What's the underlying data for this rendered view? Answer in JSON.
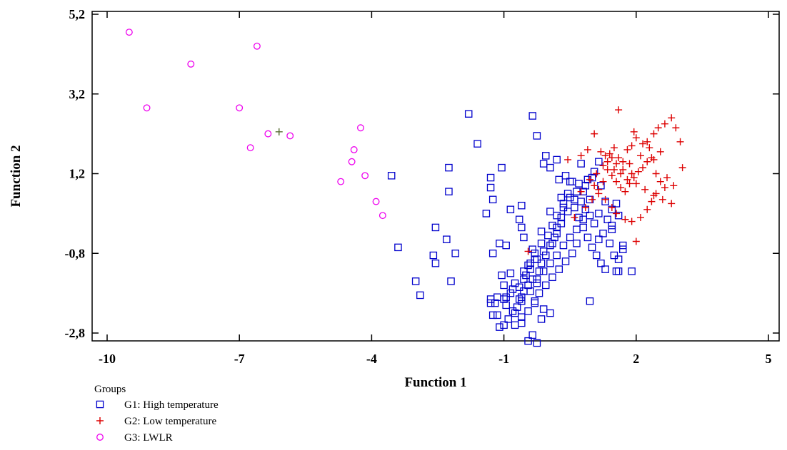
{
  "chart_data": {
    "type": "scatter",
    "xlabel": "Function 1",
    "ylabel": "Function 2",
    "xlim": [
      -10.5,
      5
    ],
    "ylim": [
      -3.0,
      5.3
    ],
    "x_ticks": [
      -10,
      -7,
      -4,
      -1,
      2,
      5
    ],
    "x_tick_labels": [
      "-10",
      "-7",
      "-4",
      "-1",
      "2",
      "5"
    ],
    "y_ticks": [
      -2.8,
      -0.8,
      1.2,
      3.2,
      5.2
    ],
    "y_tick_labels": [
      "-2,8",
      "-0,8",
      "1,2",
      "3,2",
      "5,2"
    ],
    "grid": false,
    "legend_title": "Groups",
    "legend_position": "bottom-left",
    "series": [
      {
        "name": "G1: High temperature",
        "marker": "square",
        "color": "#0000cc",
        "points": [
          [
            -3.55,
            1.15
          ],
          [
            -3.4,
            -0.65
          ],
          [
            -3.0,
            -1.5
          ],
          [
            -2.9,
            -1.85
          ],
          [
            -2.55,
            -0.15
          ],
          [
            -2.6,
            -0.85
          ],
          [
            -2.55,
            -1.05
          ],
          [
            -2.3,
            -0.45
          ],
          [
            -2.2,
            -1.5
          ],
          [
            -2.25,
            0.75
          ],
          [
            -2.25,
            1.35
          ],
          [
            -2.1,
            -0.8
          ],
          [
            -1.8,
            2.7
          ],
          [
            -1.6,
            1.95
          ],
          [
            -1.3,
            1.1
          ],
          [
            -1.3,
            0.85
          ],
          [
            -1.25,
            0.55
          ],
          [
            -1.05,
            1.35
          ],
          [
            -1.1,
            -0.55
          ],
          [
            -1.25,
            -0.8
          ],
          [
            -1.3,
            -1.95
          ],
          [
            -1.25,
            -2.35
          ],
          [
            -1.05,
            -1.35
          ],
          [
            -1.0,
            -1.6
          ],
          [
            -0.95,
            -2.1
          ],
          [
            -0.85,
            0.3
          ],
          [
            -0.6,
            0.4
          ],
          [
            -0.65,
            0.05
          ],
          [
            -0.6,
            -0.15
          ],
          [
            -0.85,
            -1.3
          ],
          [
            -0.8,
            -1.7
          ],
          [
            -0.75,
            -2.3
          ],
          [
            -0.6,
            -1.9
          ],
          [
            -0.5,
            -1.35
          ],
          [
            -0.45,
            -1.1
          ],
          [
            -0.35,
            -0.7
          ],
          [
            -0.3,
            -0.95
          ],
          [
            -0.25,
            -1.55
          ],
          [
            -0.3,
            -2.0
          ],
          [
            -0.15,
            -2.45
          ],
          [
            -0.1,
            -2.2
          ],
          [
            0.05,
            -2.3
          ],
          [
            -0.6,
            -2.55
          ],
          [
            -0.35,
            -2.85
          ],
          [
            -0.45,
            -3.0
          ],
          [
            -0.25,
            -3.05
          ],
          [
            -0.75,
            -2.6
          ],
          [
            -0.35,
            2.65
          ],
          [
            -0.25,
            2.15
          ],
          [
            -0.05,
            1.65
          ],
          [
            0.2,
            1.55
          ],
          [
            -0.1,
            1.45
          ],
          [
            0.05,
            1.35
          ],
          [
            0.25,
            1.05
          ],
          [
            0.4,
            1.15
          ],
          [
            0.55,
            1.0
          ],
          [
            0.65,
            0.75
          ],
          [
            0.75,
            0.5
          ],
          [
            0.85,
            0.3
          ],
          [
            0.95,
            0.15
          ],
          [
            1.05,
            -0.05
          ],
          [
            1.15,
            0.2
          ],
          [
            1.25,
            -0.3
          ],
          [
            1.4,
            -0.55
          ],
          [
            1.5,
            -0.85
          ],
          [
            1.6,
            -0.95
          ],
          [
            1.7,
            -0.6
          ],
          [
            1.55,
            -1.25
          ],
          [
            1.45,
            -0.2
          ],
          [
            1.3,
            0.5
          ],
          [
            1.2,
            0.9
          ],
          [
            1.05,
            1.25
          ],
          [
            0.9,
            1.05
          ],
          [
            0.7,
            0.95
          ],
          [
            0.5,
            0.6
          ],
          [
            0.35,
            0.35
          ],
          [
            0.3,
            0.1
          ],
          [
            0.2,
            -0.15
          ],
          [
            0.15,
            -0.4
          ],
          [
            0.05,
            -0.6
          ],
          [
            -0.05,
            -0.85
          ],
          [
            -0.15,
            -1.05
          ],
          [
            -0.2,
            -1.25
          ],
          [
            -0.35,
            -1.45
          ],
          [
            -0.45,
            -1.6
          ],
          [
            -0.55,
            -1.75
          ],
          [
            -0.65,
            -1.95
          ],
          [
            -0.7,
            -2.15
          ],
          [
            -0.8,
            -2.25
          ],
          [
            -0.9,
            -2.45
          ],
          [
            -1.0,
            -2.6
          ],
          [
            -1.1,
            -2.65
          ],
          [
            -1.15,
            -2.35
          ],
          [
            -1.2,
            -2.05
          ],
          [
            -0.95,
            -1.9
          ],
          [
            -0.75,
            -1.55
          ],
          [
            -0.55,
            -1.25
          ],
          [
            -0.4,
            -1.05
          ],
          [
            -0.3,
            -0.8
          ],
          [
            -0.15,
            -0.55
          ],
          [
            0.0,
            -0.35
          ],
          [
            0.1,
            -0.1
          ],
          [
            0.2,
            0.15
          ],
          [
            0.35,
            0.45
          ],
          [
            0.45,
            0.7
          ],
          [
            0.6,
            0.35
          ],
          [
            0.7,
            0.1
          ],
          [
            0.8,
            -0.15
          ],
          [
            0.9,
            -0.4
          ],
          [
            1.0,
            -0.65
          ],
          [
            1.1,
            -0.85
          ],
          [
            1.2,
            -1.05
          ],
          [
            1.3,
            -1.2
          ],
          [
            1.15,
            -0.45
          ],
          [
            1.35,
            0.05
          ],
          [
            1.45,
            0.3
          ],
          [
            1.55,
            0.45
          ],
          [
            1.6,
            0.15
          ],
          [
            1.45,
            -0.1
          ],
          [
            0.95,
            0.55
          ],
          [
            0.8,
            0.75
          ],
          [
            0.65,
            -0.55
          ],
          [
            0.55,
            -0.8
          ],
          [
            0.4,
            -1.0
          ],
          [
            0.25,
            -1.2
          ],
          [
            0.1,
            -1.4
          ],
          [
            -0.05,
            -1.6
          ],
          [
            -0.2,
            -1.8
          ],
          [
            -0.3,
            -2.05
          ],
          [
            -0.45,
            -2.25
          ],
          [
            -0.6,
            -2.4
          ],
          [
            -0.15,
            -0.25
          ],
          [
            0.05,
            0.25
          ],
          [
            0.3,
            0.6
          ],
          [
            0.5,
            1.0
          ],
          [
            0.75,
            1.45
          ],
          [
            1.15,
            1.5
          ],
          [
            1.0,
            1.1
          ],
          [
            0.85,
            0.9
          ],
          [
            0.6,
            0.55
          ],
          [
            0.45,
            0.25
          ],
          [
            0.3,
            -0.05
          ],
          [
            0.2,
            -0.3
          ],
          [
            0.1,
            -0.55
          ],
          [
            -0.1,
            -0.75
          ],
          [
            -0.25,
            -0.95
          ],
          [
            -0.4,
            -1.2
          ],
          [
            -0.55,
            -1.45
          ],
          [
            -0.65,
            -1.65
          ],
          [
            -0.85,
            -1.8
          ],
          [
            -1.0,
            -1.95
          ],
          [
            -1.15,
            -1.9
          ],
          [
            -1.3,
            -2.05
          ],
          [
            -0.6,
            -2.0
          ],
          [
            -0.4,
            -1.75
          ],
          [
            -0.25,
            -1.45
          ],
          [
            -0.1,
            -1.25
          ],
          [
            0.05,
            -1.05
          ],
          [
            0.2,
            -0.85
          ],
          [
            0.35,
            -0.6
          ],
          [
            0.5,
            -0.4
          ],
          [
            0.65,
            -0.2
          ],
          [
            0.8,
            0.05
          ],
          [
            1.7,
            -0.7
          ],
          [
            1.6,
            -1.25
          ],
          [
            1.9,
            -1.25
          ],
          [
            -0.95,
            -0.6
          ],
          [
            -1.4,
            0.2
          ],
          [
            -0.55,
            -0.4
          ],
          [
            0.95,
            -2.0
          ]
        ]
      },
      {
        "name": "G2: Low temperature",
        "marker": "plus",
        "color": "#dd0000",
        "points": [
          [
            0.6,
            0.1
          ],
          [
            0.45,
            1.55
          ],
          [
            0.75,
            1.65
          ],
          [
            0.9,
            1.8
          ],
          [
            1.05,
            2.2
          ],
          [
            1.2,
            1.75
          ],
          [
            1.3,
            1.65
          ],
          [
            1.4,
            1.7
          ],
          [
            1.5,
            1.85
          ],
          [
            1.6,
            1.6
          ],
          [
            1.7,
            1.5
          ],
          [
            1.8,
            1.8
          ],
          [
            1.9,
            1.9
          ],
          [
            2.0,
            2.1
          ],
          [
            2.15,
            1.95
          ],
          [
            2.25,
            2.0
          ],
          [
            2.4,
            2.2
          ],
          [
            2.5,
            2.35
          ],
          [
            2.65,
            2.45
          ],
          [
            2.8,
            2.6
          ],
          [
            2.9,
            2.35
          ],
          [
            3.0,
            2.0
          ],
          [
            1.95,
            2.25
          ],
          [
            1.6,
            2.8
          ],
          [
            1.35,
            1.3
          ],
          [
            1.45,
            1.15
          ],
          [
            1.55,
            1.0
          ],
          [
            1.65,
            0.85
          ],
          [
            1.75,
            0.75
          ],
          [
            1.85,
            0.95
          ],
          [
            1.95,
            1.1
          ],
          [
            2.05,
            1.25
          ],
          [
            2.15,
            1.35
          ],
          [
            2.25,
            1.5
          ],
          [
            2.35,
            1.6
          ],
          [
            2.45,
            1.2
          ],
          [
            2.55,
            1.0
          ],
          [
            2.65,
            0.85
          ],
          [
            2.45,
            0.7
          ],
          [
            2.35,
            0.5
          ],
          [
            2.25,
            0.3
          ],
          [
            2.1,
            0.1
          ],
          [
            1.9,
            0.0
          ],
          [
            1.75,
            0.05
          ],
          [
            1.55,
            0.2
          ],
          [
            1.45,
            0.35
          ],
          [
            1.3,
            0.55
          ],
          [
            1.15,
            0.7
          ],
          [
            1.05,
            0.9
          ],
          [
            0.95,
            1.05
          ],
          [
            1.1,
            1.2
          ],
          [
            1.25,
            1.4
          ],
          [
            1.35,
            1.5
          ],
          [
            1.5,
            1.3
          ],
          [
            1.65,
            1.2
          ],
          [
            1.8,
            1.05
          ],
          [
            2.0,
            0.95
          ],
          [
            2.2,
            0.8
          ],
          [
            2.4,
            0.65
          ],
          [
            2.6,
            0.55
          ],
          [
            2.8,
            0.45
          ],
          [
            2.7,
            1.1
          ],
          [
            2.85,
            0.9
          ],
          [
            3.05,
            1.35
          ],
          [
            2.55,
            1.75
          ],
          [
            2.3,
            1.85
          ],
          [
            2.1,
            1.65
          ],
          [
            1.85,
            1.45
          ],
          [
            1.7,
            1.3
          ],
          [
            1.55,
            1.45
          ],
          [
            1.45,
            1.6
          ],
          [
            1.25,
            1.0
          ],
          [
            1.15,
            0.8
          ],
          [
            1.0,
            0.55
          ],
          [
            0.85,
            0.35
          ],
          [
            0.75,
            0.75
          ],
          [
            2.0,
            -0.5
          ],
          [
            -0.45,
            -0.75
          ],
          [
            1.9,
            1.2
          ],
          [
            2.4,
            1.55
          ]
        ]
      },
      {
        "name": "G3: LWLR",
        "marker": "circle",
        "color": "#ee00ee",
        "points": [
          [
            -9.5,
            4.75
          ],
          [
            -9.1,
            2.85
          ],
          [
            -8.1,
            3.95
          ],
          [
            -7.0,
            2.85
          ],
          [
            -6.6,
            4.4
          ],
          [
            -6.75,
            1.85
          ],
          [
            -6.35,
            2.2
          ],
          [
            -5.85,
            2.15
          ],
          [
            -4.7,
            1.0
          ],
          [
            -4.45,
            1.5
          ],
          [
            -4.4,
            1.8
          ],
          [
            -4.25,
            2.35
          ],
          [
            -4.15,
            1.15
          ],
          [
            -3.9,
            0.5
          ],
          [
            -3.75,
            0.15
          ]
        ]
      }
    ],
    "extra_marks": [
      {
        "marker": "plus",
        "color": "#556b2f",
        "point": [
          -6.1,
          2.25
        ]
      }
    ]
  }
}
